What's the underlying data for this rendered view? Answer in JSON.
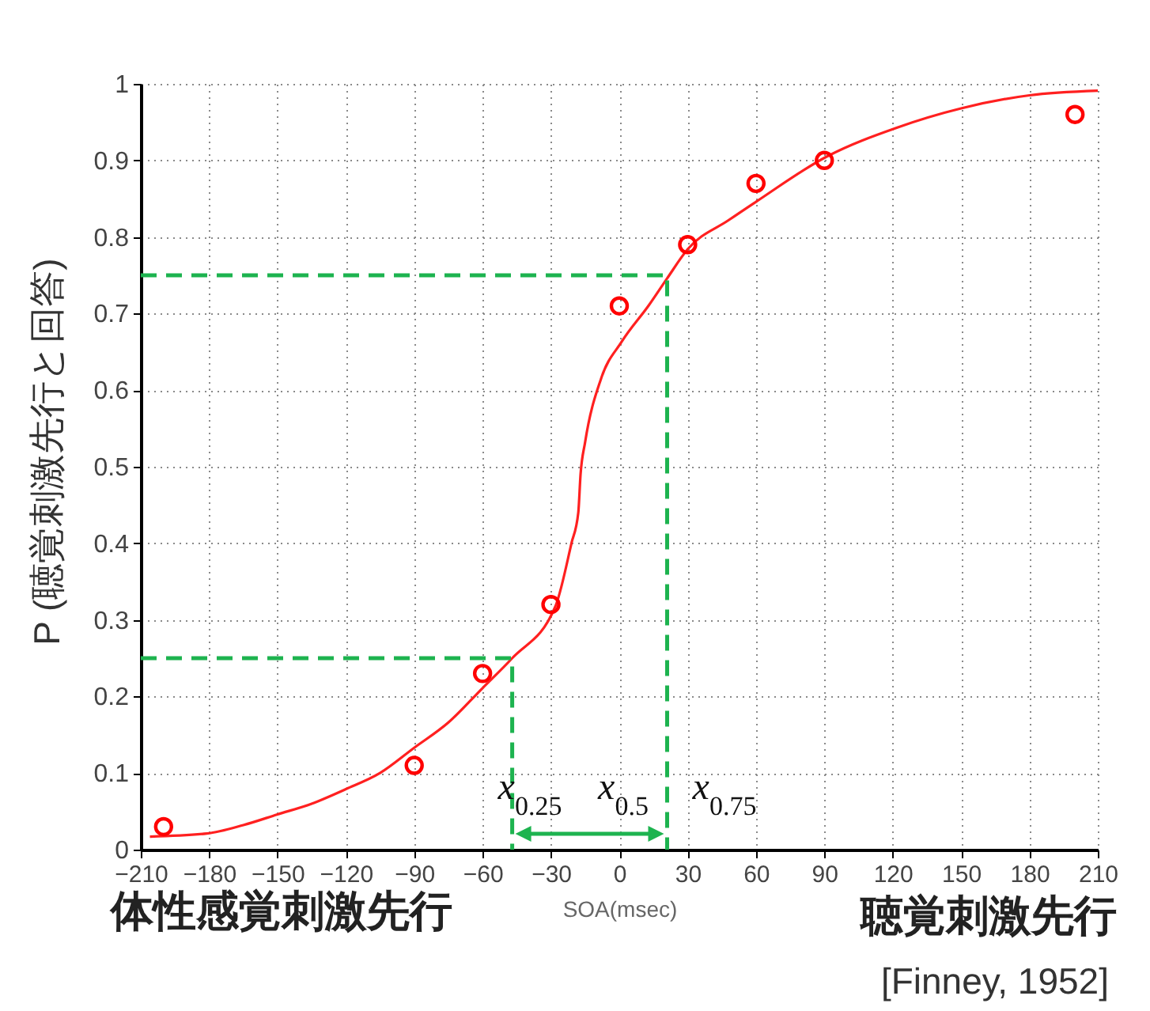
{
  "chart_data": {
    "type": "scatter",
    "xlabel": "SOA(msec)",
    "ylabel": "P (聴覚刺激先行と回答)",
    "annotations": [
      "体性感覚刺激先行",
      "聴覚刺激先行",
      "[Finney, 1952]",
      "x$_{0.25}$",
      "x$_{0.5}$",
      "x$_{0.75}$"
    ],
    "series": [
      {
        "color": "#ff0000",
        "marker": "circle",
        "x": [
          -200,
          -90,
          -60,
          -30,
          0,
          30,
          60,
          90,
          200
        ],
        "values": [
          0.03,
          0.11,
          0.23,
          0.32,
          0.71,
          0.79,
          0.87,
          0.9,
          0.96
        ]
      },
      {
        "type": "line",
        "color": "#ff2020",
        "x": [
          -206,
          -181,
          -165,
          -150,
          -135,
          -120,
          -105,
          -90,
          -75,
          -60,
          -47,
          -28,
          -21,
          -18,
          -17,
          -15,
          -8,
          1,
          13,
          21,
          30,
          48,
          60,
          91,
          122,
          150,
          180,
          210
        ],
        "values": [
          0.017,
          0.021,
          0.032,
          0.046,
          0.06,
          0.079,
          0.1,
          0.133,
          0.166,
          0.211,
          0.25,
          0.318,
          0.4,
          0.44,
          0.49,
          0.532,
          0.615,
          0.663,
          0.711,
          0.746,
          0.784,
          0.822,
          0.846,
          0.905,
          0.943,
          0.968,
          0.985,
          0.991
        ]
      },
      {
        "type": "line",
        "color": "#1db34f",
        "line_style": "dashed",
        "x": [
          -210,
          -47,
          -47
        ],
        "values": [
          0.25,
          0.25,
          0
        ]
      },
      {
        "type": "line",
        "color": "#1db34f",
        "line_style": "dashed",
        "x": [
          -210,
          21,
          21
        ],
        "values": [
          0.75,
          0.75,
          0
        ]
      }
    ],
    "xlim": [
      -210,
      210
    ],
    "xticks": [
      -210,
      -180,
      -150,
      -120,
      -90,
      -60,
      -30,
      0,
      30,
      60,
      90,
      120,
      150,
      180,
      210
    ],
    "ylim": [
      0,
      1
    ],
    "yticks": [
      0,
      0.1,
      0.2,
      0.3,
      0.4,
      0.5,
      0.6,
      0.7,
      0.8,
      0.9,
      1
    ],
    "grid": true
  }
}
